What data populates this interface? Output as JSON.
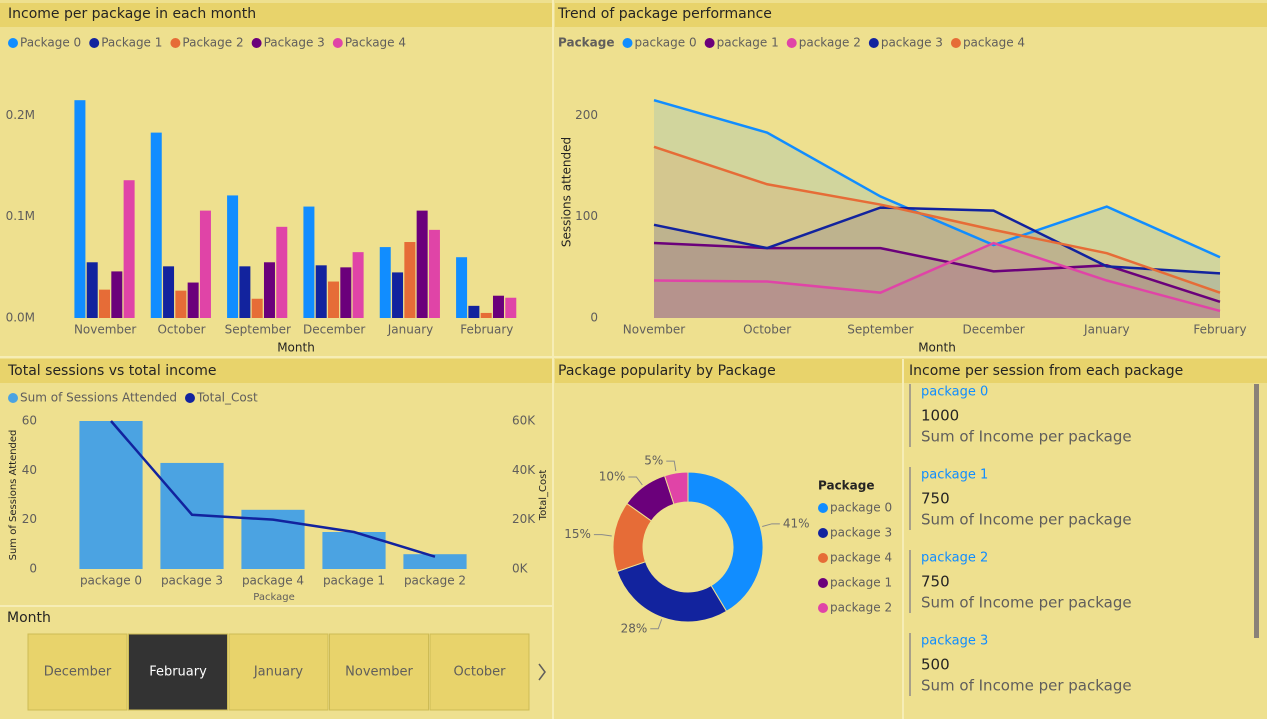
{
  "chart_data": [
    {
      "type": "bar",
      "title": "Income per package in each month",
      "categories": [
        "November",
        "October",
        "September",
        "December",
        "January",
        "February"
      ],
      "series": [
        {
          "name": "Package 0",
          "color": "#118DFF",
          "values": [
            215000,
            183000,
            121000,
            110000,
            70000,
            60000
          ]
        },
        {
          "name": "Package 1",
          "color": "#12239E",
          "values": [
            55000,
            51000,
            51000,
            52000,
            45000,
            12000
          ]
        },
        {
          "name": "Package 2",
          "color": "#E66C37",
          "values": [
            28000,
            27000,
            19000,
            36000,
            75000,
            5000
          ]
        },
        {
          "name": "Package 3",
          "color": "#6B007B",
          "values": [
            46000,
            35000,
            55000,
            50000,
            106000,
            22000
          ]
        },
        {
          "name": "Package 4",
          "color": "#E044A7",
          "values": [
            136000,
            106000,
            90000,
            65000,
            87000,
            20000
          ]
        }
      ],
      "ylim": [
        0,
        230000
      ],
      "yticks": [
        {
          "value": 0,
          "label": "0.0M"
        },
        {
          "value": 100000,
          "label": "0.1M"
        },
        {
          "value": 200000,
          "label": "0.2M"
        }
      ],
      "xlabel": "Month"
    },
    {
      "type": "area",
      "title": "Trend of package performance",
      "legend_title": "Package",
      "categories": [
        "November",
        "October",
        "September",
        "December",
        "January",
        "February"
      ],
      "series": [
        {
          "name": "package 0",
          "color": "#118DFF",
          "values": [
            215,
            183,
            120,
            72,
            110,
            60
          ]
        },
        {
          "name": "package 1",
          "color": "#6B007B",
          "values": [
            74,
            69,
            69,
            46,
            52,
            16
          ]
        },
        {
          "name": "package 2",
          "color": "#E044A7",
          "values": [
            37,
            36,
            25,
            74,
            37,
            7
          ]
        },
        {
          "name": "package 3",
          "color": "#12239E",
          "values": [
            92,
            69,
            109,
            106,
            51,
            44
          ]
        },
        {
          "name": "package 4",
          "color": "#E66C37",
          "values": [
            169,
            132,
            112,
            87,
            64,
            25
          ]
        }
      ],
      "ylim": [
        0,
        230
      ],
      "yticks": [
        0,
        100,
        200
      ],
      "xlabel": "Month",
      "ylabel": "Sessions attended"
    },
    {
      "type": "combo",
      "title": "Total sessions vs total income",
      "categories": [
        "package 0",
        "package 3",
        "package 4",
        "package 1",
        "package 2"
      ],
      "series": [
        {
          "name": "Sum of Sessions Attended",
          "color": "#4BA3E2",
          "values": [
            60,
            43,
            24,
            15,
            6
          ]
        },
        {
          "name": "Total_Cost",
          "color": "#12239E",
          "axis": "y2",
          "values": [
            60000,
            22000,
            20000,
            15000,
            5000
          ]
        }
      ],
      "ylim": [
        0,
        60
      ],
      "yticks": [
        0,
        20,
        40,
        60
      ],
      "y2lim": [
        0,
        60000
      ],
      "y2ticks": [
        {
          "value": 0,
          "label": "0K"
        },
        {
          "value": 20000,
          "label": "20K"
        },
        {
          "value": 40000,
          "label": "40K"
        },
        {
          "value": 60000,
          "label": "60K"
        }
      ],
      "xlabel": "Package",
      "ylabel": "Sum of Sessions Attended",
      "y2label": "Total_Cost"
    },
    {
      "type": "donut",
      "title": "Package popularity by Package",
      "legend_title": "Package",
      "categories": [
        "package 0",
        "package 3",
        "package 4",
        "package 1",
        "package 2"
      ],
      "values": [
        41,
        28,
        15,
        10,
        5
      ],
      "value_labels": [
        "41%",
        "28%",
        "15%",
        "10%",
        "5%"
      ],
      "colors": [
        "#118DFF",
        "#12239E",
        "#E66C37",
        "#6B007B",
        "#E044A7"
      ]
    }
  ],
  "slicer": {
    "title": "Month",
    "items": [
      "December",
      "February",
      "January",
      "November",
      "October"
    ],
    "selected": 1
  },
  "cards": {
    "title": "Income per session from each package",
    "items": [
      {
        "label": "package 0",
        "value": 1000,
        "caption": "Sum of Income per package"
      },
      {
        "label": "package 1",
        "value": 750,
        "caption": "Sum of Income per package"
      },
      {
        "label": "package 2",
        "value": 750,
        "caption": "Sum of Income per package"
      },
      {
        "label": "package 3",
        "value": 500,
        "caption": "Sum of Income per package"
      }
    ]
  }
}
